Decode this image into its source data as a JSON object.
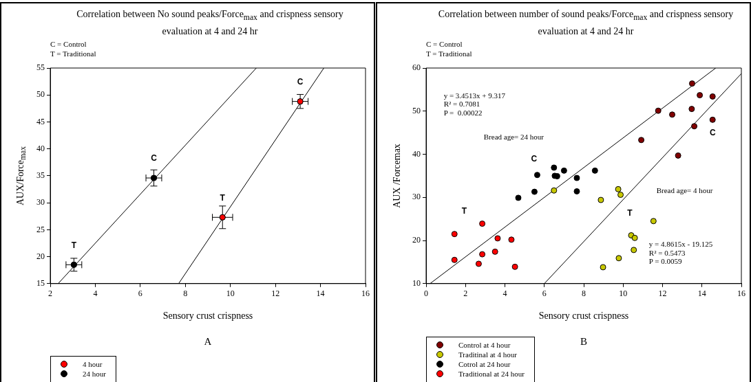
{
  "chart_data": [
    {
      "type": "scatter",
      "title": "Correlation between No sound peaks/Force$_{max}$ and crispness sensory evaluation at 4 and 24 hr",
      "subtitle": "C = Control\nT = Traditional",
      "xlabel": "Sensory crust crispness",
      "ylabel": "AUX/Force$_{max}$",
      "xlim": [
        2,
        16
      ],
      "xticks": [
        2,
        4,
        6,
        8,
        10,
        12,
        14,
        16
      ],
      "ylim": [
        15,
        55
      ],
      "yticks": [
        15,
        20,
        25,
        30,
        35,
        40,
        45,
        50,
        55
      ],
      "legend": "bottom left",
      "series": [
        {
          "name": "4 hour",
          "color": "#ff0000",
          "marker": "circle",
          "x": [
            9.65,
            13.1
          ],
          "values": [
            27.3,
            48.8
          ],
          "errors": [
            2.1,
            1.3
          ],
          "xerrors": [
            0.45,
            0.35
          ]
        },
        {
          "name": "24 hour",
          "color": "#000000",
          "marker": "circle",
          "x": [
            3.05,
            6.6
          ],
          "values": [
            18.5,
            34.6
          ],
          "errors": [
            1.2,
            1.5
          ],
          "xerrors": [
            0.35,
            0.35
          ]
        },
        {
          "type": "line",
          "color": "#000000",
          "x": [
            2.35,
            11.15
          ],
          "values": [
            15,
            55
          ]
        },
        {
          "type": "line",
          "color": "#000000",
          "x": [
            7.7,
            14.15
          ],
          "values": [
            15,
            55
          ]
        }
      ],
      "annotations": [
        {
          "text": "C",
          "x": 13.1,
          "y": 48.8
        },
        {
          "text": "C",
          "x": 6.6,
          "y": 34.6
        },
        {
          "text": "T",
          "x": 9.65,
          "y": 27.3
        },
        {
          "text": "T",
          "x": 3.05,
          "y": 18.5
        },
        "A"
      ]
    },
    {
      "type": "scatter",
      "title": "Correlation between number of sound peaks/Force$_{max}$ and crispness sensory evaluation at 4 and 24 hr",
      "subtitle": "C = Control\nT = Traditional",
      "xlabel": "Sensory crust crispness",
      "ylabel": "AUX /Forcemax",
      "xlim": [
        0,
        16
      ],
      "xticks": [
        0,
        2,
        4,
        6,
        8,
        10,
        12,
        14,
        16
      ],
      "ylim": [
        10,
        60
      ],
      "yticks": [
        10,
        20,
        30,
        40,
        50,
        60
      ],
      "legend": "bottom left",
      "series": [
        {
          "name": "Control at 4 hour",
          "color": "#800000",
          "marker": "circle",
          "x": [
            13.5,
            13.89,
            14.54,
            11.78,
            12.49,
            13.48,
            13.61,
            14.54,
            10.92,
            12.79
          ],
          "values": [
            56.4,
            53.7,
            53.4,
            50.1,
            49.2,
            50.5,
            46.5,
            48.0,
            43.3,
            39.7
          ]
        },
        {
          "name": "Traditinal at 4 hour",
          "color": "#c8c800",
          "marker": "circle",
          "x": [
            6.49,
            8.87,
            8.98,
            9.75,
            9.87,
            11.54,
            10.41,
            10.59,
            10.54,
            9.78
          ],
          "values": [
            31.6,
            29.4,
            13.8,
            31.9,
            30.6,
            24.5,
            21.2,
            20.6,
            17.8,
            15.9
          ]
        },
        {
          "name": "Cotrol at 24 hour",
          "color": "#000000",
          "marker": "circle",
          "x": [
            4.68,
            5.64,
            5.5,
            6.49,
            6.53,
            6.65,
            7.0,
            7.65,
            7.65,
            8.57
          ],
          "values": [
            29.9,
            35.2,
            31.3,
            36.9,
            35.0,
            34.9,
            36.2,
            34.5,
            31.4,
            36.2
          ]
        },
        {
          "name": "Traditional at 24 hour",
          "color": "#ff0000",
          "marker": "circle",
          "x": [
            1.44,
            1.44,
            2.85,
            2.85,
            2.67,
            3.5,
            3.63,
            4.33,
            4.51
          ],
          "values": [
            21.5,
            15.5,
            23.9,
            16.8,
            14.6,
            17.4,
            20.5,
            20.2,
            13.9
          ]
        },
        {
          "type": "line",
          "color": "#000000",
          "x": [
            0.2,
            14.7
          ],
          "values": [
            10,
            60
          ]
        },
        {
          "type": "line",
          "color": "#000000",
          "x": [
            6,
            16
          ],
          "values": [
            10,
            58.7
          ]
        }
      ],
      "annotations": [
        "y = 3.4513x + 9.317",
        "R² = 0.7081",
        "P =  0.00022",
        "Bread age= 24 hour",
        "Bread age= 4 hour",
        "y = 4.8615x - 19.125",
        "R² = 0.5473",
        "P = 0.0059",
        "C",
        "T",
        "C",
        "T",
        "B"
      ]
    }
  ]
}
